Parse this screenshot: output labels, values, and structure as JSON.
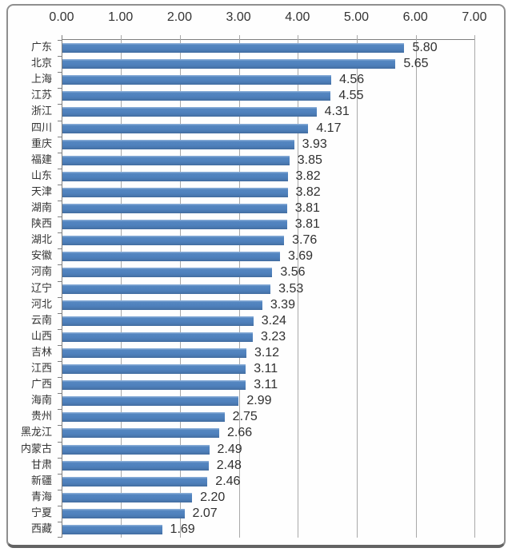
{
  "chart_data": {
    "type": "bar",
    "orientation": "horizontal",
    "title": "",
    "xlabel": "",
    "ylabel": "",
    "xlim": [
      0,
      7
    ],
    "grid": true,
    "legend": "none",
    "x_ticks": [
      "0.00",
      "1.00",
      "2.00",
      "3.00",
      "4.00",
      "5.00",
      "6.00",
      "7.00"
    ],
    "categories": [
      "广东",
      "北京",
      "上海",
      "江苏",
      "浙江",
      "四川",
      "重庆",
      "福建",
      "山东",
      "天津",
      "湖南",
      "陕西",
      "湖北",
      "安徽",
      "河南",
      "辽宁",
      "河北",
      "云南",
      "山西",
      "吉林",
      "江西",
      "广西",
      "海南",
      "贵州",
      "黑龙江",
      "内蒙古",
      "甘肃",
      "新疆",
      "青海",
      "宁夏",
      "西藏"
    ],
    "values": [
      5.8,
      5.65,
      4.56,
      4.55,
      4.31,
      4.17,
      3.93,
      3.85,
      3.82,
      3.82,
      3.81,
      3.81,
      3.76,
      3.69,
      3.56,
      3.53,
      3.39,
      3.24,
      3.23,
      3.12,
      3.11,
      3.11,
      2.99,
      2.75,
      2.66,
      2.49,
      2.48,
      2.46,
      2.2,
      2.07,
      1.69
    ],
    "value_labels": [
      "5.80",
      "5.65",
      "4.56",
      "4.55",
      "4.31",
      "4.17",
      "3.93",
      "3.85",
      "3.82",
      "3.82",
      "3.81",
      "3.81",
      "3.76",
      "3.69",
      "3.56",
      "3.53",
      "3.39",
      "3.24",
      "3.23",
      "3.12",
      "3.11",
      "3.11",
      "2.99",
      "2.75",
      "2.66",
      "2.49",
      "2.48",
      "2.46",
      "2.20",
      "2.07",
      "1.69"
    ],
    "colors": {
      "bar_fill": "#4f81bd",
      "bar_highlight": "#86abd6",
      "gridline": "#a9a9a9",
      "axis_line": "#7f7f7f",
      "text": "#333333",
      "frame_border": "#8f8f8f",
      "background": "#ffffff"
    }
  }
}
